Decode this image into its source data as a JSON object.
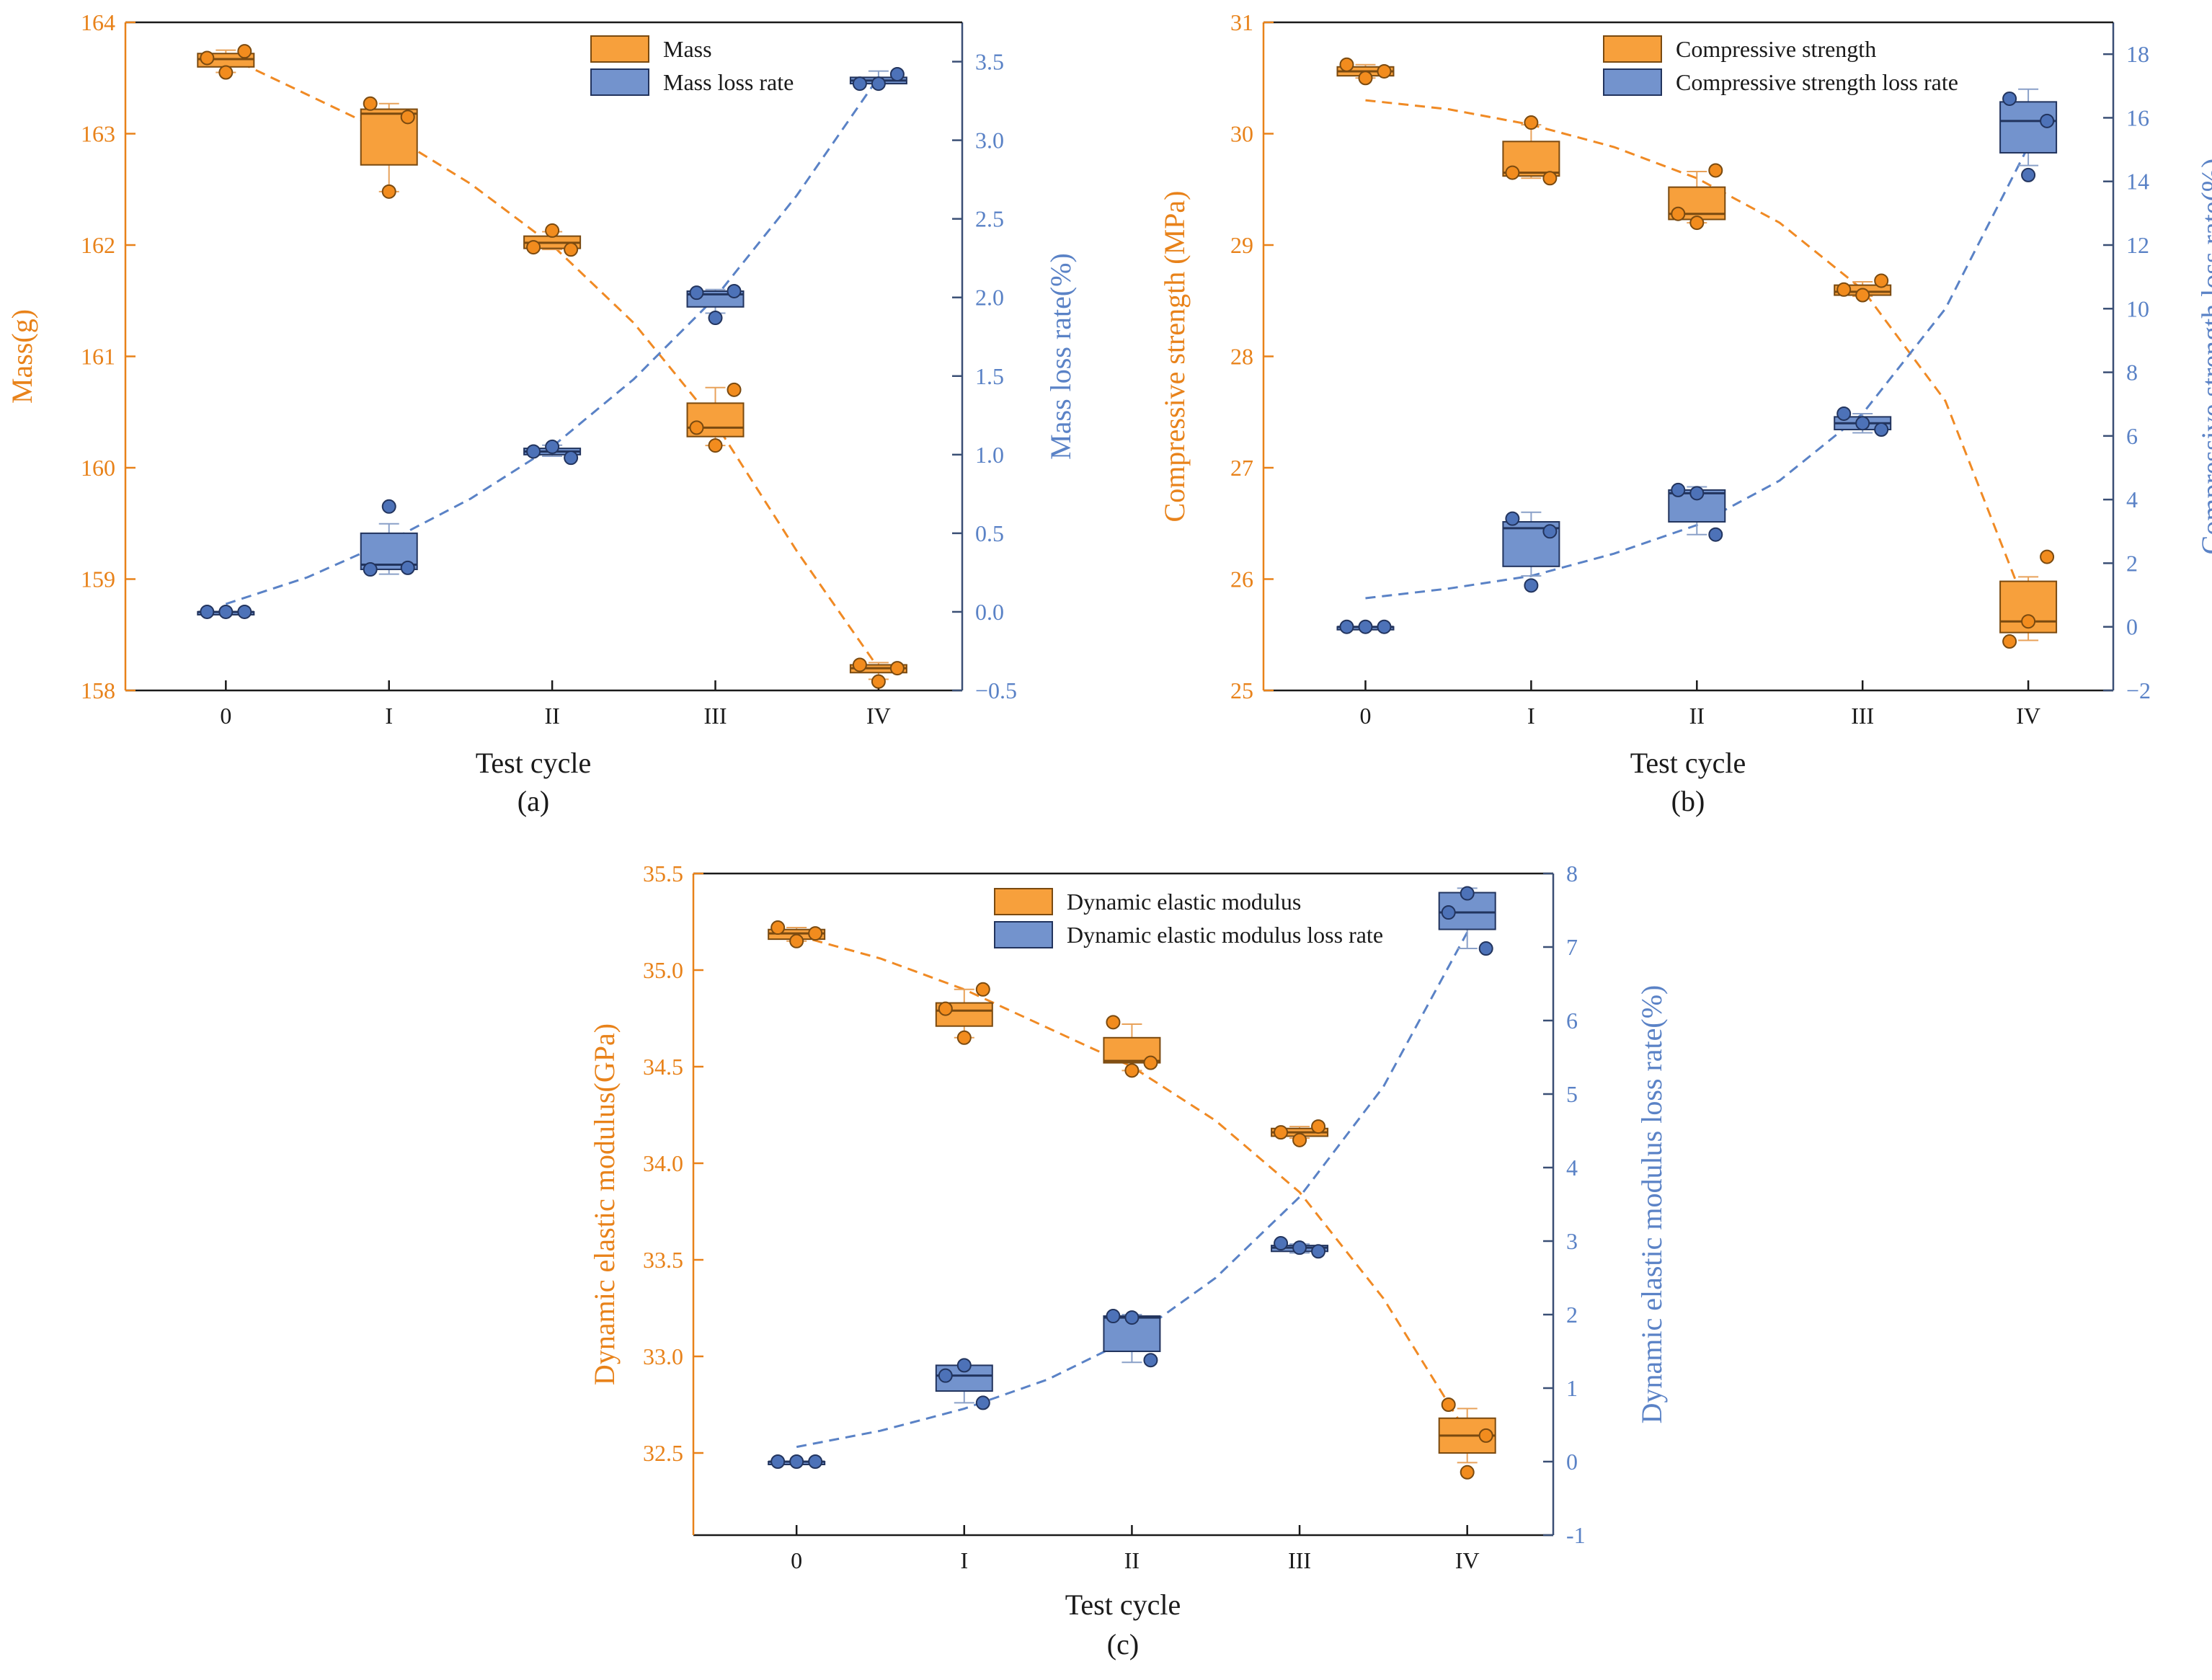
{
  "figure": {
    "colors": {
      "mass": "#f7a03c",
      "mass_edge": "#d98a1e",
      "mass_text": "#e8821a",
      "loss": "#7393cd",
      "loss_edge": "#3a5ba0",
      "loss_text": "#5a82c6",
      "axis": "#3a4f75",
      "dark": "#1a1a1a"
    }
  },
  "chart_data": [
    {
      "type": "box",
      "panel_label": "(a)",
      "xlabel": "Test cycle",
      "categories": [
        "0",
        "I",
        "II",
        "III",
        "IV"
      ],
      "y_left": {
        "label": "Mass(g)",
        "lim": [
          158,
          164
        ],
        "ticks": [
          158,
          159,
          160,
          161,
          162,
          163,
          164
        ],
        "tick_labels": [
          "158",
          "159",
          "160",
          "161",
          "162",
          "163",
          "164"
        ]
      },
      "y_right": {
        "label": "Mass loss rate(%)",
        "lim": [
          -0.5,
          3.75
        ],
        "ticks": [
          -0.5,
          0,
          0.5,
          1,
          1.5,
          2,
          2.5,
          3,
          3.5
        ],
        "tick_labels": [
          "−0.5",
          "0.0",
          "0.5",
          "1.0",
          "1.5",
          "2.0",
          "2.5",
          "3.0",
          "3.5"
        ]
      },
      "legend": [
        "Mass",
        "Mass loss rate"
      ],
      "series": [
        {
          "name": "Mass",
          "axis": "left",
          "boxes": [
            {
              "q1": 163.6,
              "median": 163.67,
              "q3": 163.72,
              "wlo": 163.55,
              "whi": 163.75,
              "points": [
                163.68,
                163.55,
                163.74
              ]
            },
            {
              "q1": 162.72,
              "median": 163.18,
              "q3": 163.22,
              "wlo": 162.48,
              "whi": 163.27,
              "points": [
                163.27,
                162.48,
                163.15
              ]
            },
            {
              "q1": 161.97,
              "median": 162.02,
              "q3": 162.08,
              "wlo": 161.96,
              "whi": 162.12,
              "points": [
                161.98,
                162.13,
                161.96
              ]
            },
            {
              "q1": 160.28,
              "median": 160.36,
              "q3": 160.58,
              "wlo": 160.2,
              "whi": 160.72,
              "points": [
                160.36,
                160.2,
                160.7
              ]
            },
            {
              "q1": 158.16,
              "median": 158.2,
              "q3": 158.23,
              "wlo": 158.1,
              "whi": 158.25,
              "points": [
                158.23,
                158.08,
                158.2
              ]
            }
          ],
          "fit": [
            [
              0,
              163.7
            ],
            [
              0.5,
              163.35
            ],
            [
              1,
              163.0
            ],
            [
              1.5,
              162.55
            ],
            [
              2,
              162.0
            ],
            [
              2.5,
              161.3
            ],
            [
              3,
              160.4
            ],
            [
              3.5,
              159.25
            ],
            [
              4,
              158.2
            ]
          ]
        },
        {
          "name": "Mass loss rate",
          "axis": "right",
          "boxes": [
            {
              "q1": 0.0,
              "median": 0.0,
              "q3": 0.0,
              "wlo": 0.0,
              "whi": 0.0,
              "points": [
                0.0,
                0.0,
                0.0
              ]
            },
            {
              "q1": 0.27,
              "median": 0.3,
              "q3": 0.5,
              "wlo": 0.24,
              "whi": 0.56,
              "points": [
                0.27,
                0.67,
                0.28
              ]
            },
            {
              "q1": 1.0,
              "median": 1.02,
              "q3": 1.04,
              "wlo": 0.99,
              "whi": 1.06,
              "points": [
                1.02,
                1.05,
                0.98
              ]
            },
            {
              "q1": 1.94,
              "median": 2.02,
              "q3": 2.04,
              "wlo": 1.9,
              "whi": 2.05,
              "points": [
                2.03,
                1.87,
                2.04
              ]
            },
            {
              "q1": 3.36,
              "median": 3.38,
              "q3": 3.4,
              "wlo": 3.36,
              "whi": 3.44,
              "points": [
                3.36,
                3.36,
                3.42
              ]
            }
          ],
          "fit": [
            [
              0,
              0.05
            ],
            [
              0.5,
              0.22
            ],
            [
              1,
              0.45
            ],
            [
              1.5,
              0.72
            ],
            [
              2,
              1.05
            ],
            [
              2.5,
              1.48
            ],
            [
              3,
              2.0
            ],
            [
              3.5,
              2.65
            ],
            [
              4,
              3.4
            ]
          ]
        }
      ]
    },
    {
      "type": "box",
      "panel_label": "(b)",
      "xlabel": "Test cycle",
      "categories": [
        "0",
        "I",
        "II",
        "III",
        "IV"
      ],
      "y_left": {
        "label": "Compressive strength (MPa)",
        "lim": [
          25,
          31
        ],
        "ticks": [
          25,
          26,
          27,
          28,
          29,
          30,
          31
        ],
        "tick_labels": [
          "25",
          "26",
          "27",
          "28",
          "29",
          "30",
          "31"
        ]
      },
      "y_right": {
        "label": "Compressive strength loss rate(%)",
        "lim": [
          -2,
          19
        ],
        "ticks": [
          -2,
          0,
          2,
          4,
          6,
          8,
          10,
          12,
          14,
          16,
          18
        ],
        "tick_labels": [
          "−2",
          "0",
          "2",
          "4",
          "6",
          "8",
          "10",
          "12",
          "14",
          "16",
          "18"
        ]
      },
      "legend": [
        "Compressive strength",
        "Compressive strength loss rate"
      ],
      "series": [
        {
          "name": "Compressive strength",
          "axis": "left",
          "boxes": [
            {
              "q1": 30.52,
              "median": 30.56,
              "q3": 30.6,
              "wlo": 30.5,
              "whi": 30.62,
              "points": [
                30.62,
                30.5,
                30.56
              ]
            },
            {
              "q1": 29.62,
              "median": 29.65,
              "q3": 29.93,
              "wlo": 29.6,
              "whi": 30.08,
              "points": [
                29.65,
                30.1,
                29.6
              ]
            },
            {
              "q1": 29.23,
              "median": 29.28,
              "q3": 29.52,
              "wlo": 29.2,
              "whi": 29.66,
              "points": [
                29.28,
                29.2,
                29.67
              ]
            },
            {
              "q1": 28.55,
              "median": 28.58,
              "q3": 28.64,
              "wlo": 28.54,
              "whi": 28.67,
              "points": [
                28.6,
                28.55,
                28.68
              ]
            },
            {
              "q1": 25.52,
              "median": 25.62,
              "q3": 25.98,
              "wlo": 25.45,
              "whi": 26.02,
              "points": [
                25.44,
                25.62,
                26.2
              ]
            }
          ],
          "fit": [
            [
              0,
              30.3
            ],
            [
              0.5,
              30.22
            ],
            [
              1,
              30.08
            ],
            [
              1.5,
              29.88
            ],
            [
              2,
              29.6
            ],
            [
              2.5,
              29.2
            ],
            [
              3,
              28.6
            ],
            [
              3.5,
              27.6
            ],
            [
              4,
              25.7
            ]
          ]
        },
        {
          "name": "Compressive strength loss rate",
          "axis": "right",
          "boxes": [
            {
              "q1": 0.0,
              "median": 0.0,
              "q3": 0.0,
              "wlo": 0.0,
              "whi": 0.0,
              "points": [
                0.0,
                0.0,
                0.0
              ]
            },
            {
              "q1": 1.9,
              "median": 3.1,
              "q3": 3.3,
              "wlo": 1.6,
              "whi": 3.6,
              "points": [
                3.4,
                1.3,
                3.0
              ]
            },
            {
              "q1": 3.3,
              "median": 4.2,
              "q3": 4.3,
              "wlo": 2.9,
              "whi": 4.4,
              "points": [
                4.3,
                4.2,
                2.9
              ]
            },
            {
              "q1": 6.2,
              "median": 6.4,
              "q3": 6.6,
              "wlo": 6.1,
              "whi": 6.7,
              "points": [
                6.7,
                6.4,
                6.2
              ]
            },
            {
              "q1": 14.9,
              "median": 15.9,
              "q3": 16.5,
              "wlo": 14.5,
              "whi": 16.9,
              "points": [
                16.6,
                14.2,
                15.9
              ]
            }
          ],
          "fit": [
            [
              0,
              0.9
            ],
            [
              0.5,
              1.2
            ],
            [
              1,
              1.6
            ],
            [
              1.5,
              2.3
            ],
            [
              2,
              3.2
            ],
            [
              2.5,
              4.6
            ],
            [
              3,
              6.7
            ],
            [
              3.5,
              10.0
            ],
            [
              4,
              15.1
            ]
          ]
        }
      ]
    },
    {
      "type": "box",
      "panel_label": "(c)",
      "xlabel": "Test cycle",
      "categories": [
        "0",
        "I",
        "II",
        "III",
        "IV"
      ],
      "y_left": {
        "label": "Dynamic elastic modulus(GPa)",
        "lim": [
          32.25,
          35.5
        ],
        "ticks": [
          32.5,
          33.0,
          33.5,
          34.0,
          34.5,
          35.0,
          35.5
        ],
        "tick_labels": [
          "32.5",
          "33.0",
          "33.5",
          "34.0",
          "34.5",
          "35.0",
          "35.5"
        ]
      },
      "y_right": {
        "label": "Dynamic elastic modulus loss rate(%)",
        "lim": [
          -1,
          8
        ],
        "ticks": [
          -1,
          0,
          1,
          2,
          3,
          4,
          5,
          6,
          7,
          8
        ],
        "tick_labels": [
          "-1",
          "0",
          "1",
          "2",
          "3",
          "4",
          "5",
          "6",
          "7",
          "8"
        ]
      },
      "legend": [
        "Dynamic elastic modulus",
        "Dynamic elastic modulus loss rate"
      ],
      "series": [
        {
          "name": "Dynamic elastic modulus",
          "axis": "left",
          "boxes": [
            {
              "q1": 35.16,
              "median": 35.19,
              "q3": 35.21,
              "wlo": 35.15,
              "whi": 35.22,
              "points": [
                35.22,
                35.15,
                35.19
              ]
            },
            {
              "q1": 34.71,
              "median": 34.79,
              "q3": 34.83,
              "wlo": 34.65,
              "whi": 34.9,
              "points": [
                34.8,
                34.65,
                34.9
              ]
            },
            {
              "q1": 34.52,
              "median": 34.53,
              "q3": 34.65,
              "wlo": 34.48,
              "whi": 34.72,
              "points": [
                34.73,
                34.48,
                34.52
              ]
            },
            {
              "q1": 34.14,
              "median": 34.16,
              "q3": 34.18,
              "wlo": 34.13,
              "whi": 34.19,
              "points": [
                34.16,
                34.12,
                34.19
              ]
            },
            {
              "q1": 32.5,
              "median": 32.59,
              "q3": 32.68,
              "wlo": 32.45,
              "whi": 32.73,
              "points": [
                32.75,
                32.4,
                32.59
              ]
            }
          ],
          "fit": [
            [
              0,
              35.18
            ],
            [
              0.5,
              35.06
            ],
            [
              1,
              34.9
            ],
            [
              1.5,
              34.7
            ],
            [
              2,
              34.5
            ],
            [
              2.5,
              34.22
            ],
            [
              3,
              33.85
            ],
            [
              3.5,
              33.3
            ],
            [
              4,
              32.6
            ]
          ]
        },
        {
          "name": "Dynamic elastic modulus loss rate",
          "axis": "right",
          "boxes": [
            {
              "q1": 0.0,
              "median": 0.0,
              "q3": 0.0,
              "wlo": 0.0,
              "whi": 0.0,
              "points": [
                0.0,
                0.0,
                0.0
              ]
            },
            {
              "q1": 0.96,
              "median": 1.17,
              "q3": 1.31,
              "wlo": 0.8,
              "whi": 1.3,
              "points": [
                1.17,
                1.31,
                0.8
              ]
            },
            {
              "q1": 1.5,
              "median": 1.96,
              "q3": 1.98,
              "wlo": 1.35,
              "whi": 2.0,
              "points": [
                1.98,
                1.96,
                1.38
              ]
            },
            {
              "q1": 2.86,
              "median": 2.91,
              "q3": 2.94,
              "wlo": 2.84,
              "whi": 2.96,
              "points": [
                2.97,
                2.91,
                2.86
              ]
            },
            {
              "q1": 7.24,
              "median": 7.47,
              "q3": 7.74,
              "wlo": 6.98,
              "whi": 7.8,
              "points": [
                7.47,
                7.73,
                6.98
              ]
            }
          ],
          "fit": [
            [
              0,
              0.2
            ],
            [
              0.5,
              0.42
            ],
            [
              1,
              0.72
            ],
            [
              1.5,
              1.12
            ],
            [
              2,
              1.68
            ],
            [
              2.5,
              2.5
            ],
            [
              3,
              3.6
            ],
            [
              3.5,
              5.1
            ],
            [
              4,
              7.2
            ]
          ]
        }
      ]
    }
  ]
}
